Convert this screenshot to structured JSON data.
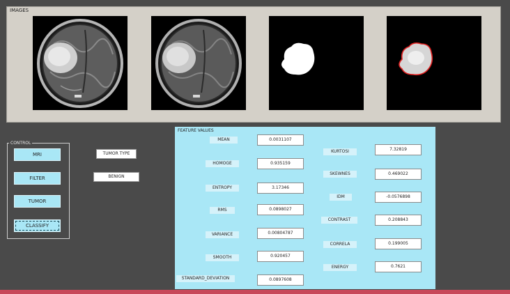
{
  "images_panel": {
    "title": "IMAGES"
  },
  "control": {
    "title": "CONTROL",
    "buttons": [
      {
        "label": "MRI"
      },
      {
        "label": "FILTER"
      },
      {
        "label": "TUMOR"
      },
      {
        "label": "CLASSIFY"
      }
    ]
  },
  "tumor": {
    "type_label": "TUMOR TYPE",
    "result": "BENIGN"
  },
  "features": {
    "title": "FEATURE VALUES",
    "left": [
      {
        "label": "MEAN",
        "value": "0.0031107"
      },
      {
        "label": "HOMOGE",
        "value": "0.935159"
      },
      {
        "label": "ENTROPY",
        "value": "3.17346"
      },
      {
        "label": "RMS",
        "value": "0.0898027"
      },
      {
        "label": "VARIANCE",
        "value": "0.00804787"
      },
      {
        "label": "SMOOTH",
        "value": "0.920457"
      },
      {
        "label": "STANDARD_DEVIATION",
        "value": "0.0897608"
      }
    ],
    "right": [
      {
        "label": "KURTOSI",
        "value": "7.32819"
      },
      {
        "label": "SKEWNES",
        "value": "0.469022"
      },
      {
        "label": "IDM",
        "value": "-0.0576898"
      },
      {
        "label": "CONTRAST",
        "value": "0.208843"
      },
      {
        "label": "CORRELA",
        "value": "0.199005"
      },
      {
        "label": "ENERGY",
        "value": "0.7621"
      }
    ]
  },
  "colors": {
    "panel_bg": "#d4d0c8",
    "feature_bg": "#a9e7f6",
    "button_bg": "#a9e7f6",
    "tumor_outline": "#e02020"
  }
}
